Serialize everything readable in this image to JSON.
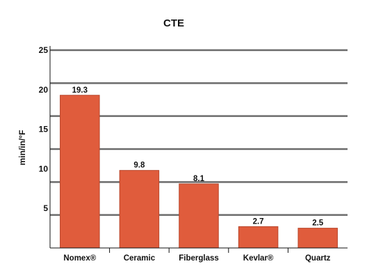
{
  "chart_data": {
    "type": "bar",
    "title": "CTE",
    "xlabel": "",
    "ylabel": "min/in/°F",
    "categories": [
      "Nomex®",
      "Ceramic",
      "Fiberglass",
      "Kevlar®",
      "Quartz"
    ],
    "values": [
      19.3,
      9.8,
      8.1,
      2.7,
      2.5
    ],
    "data_labels": [
      "19.3",
      "9.8",
      "8.1",
      "2.7",
      "2.5"
    ],
    "y_ticks": [
      "5",
      "10",
      "15",
      "20",
      "25"
    ],
    "ylim": [
      0,
      25
    ],
    "grid": true,
    "legend": "none",
    "colors": {
      "bar": "#e05c3c",
      "bar_edge": "#b8472c",
      "grid": "#6b6b6b",
      "axis": "#111111",
      "text": "#111111"
    }
  }
}
